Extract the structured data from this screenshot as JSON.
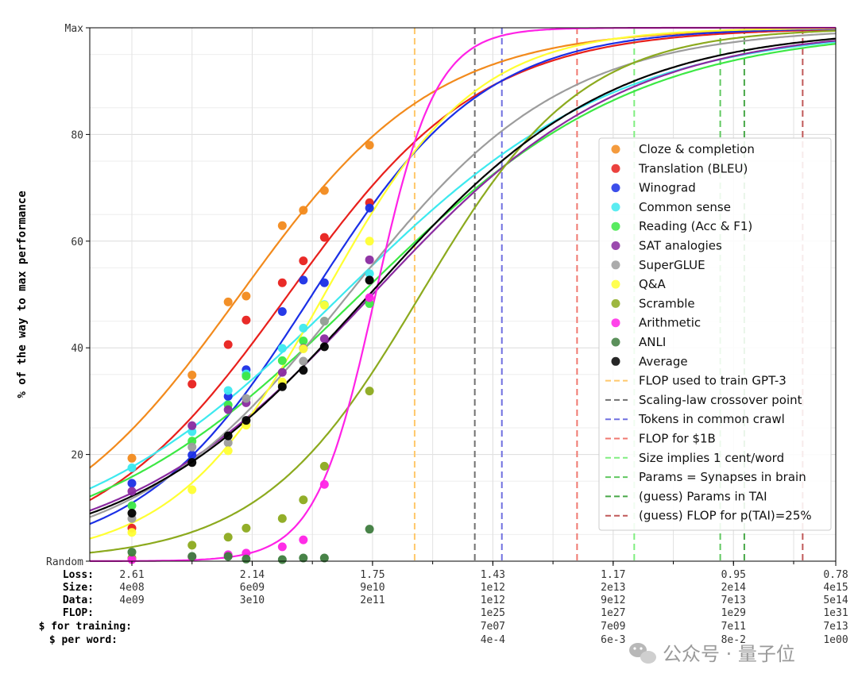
{
  "chart_data": {
    "type": "scatter",
    "ylabel": "% of the way to max performance",
    "x_scale": "log10(FLOP)",
    "xlim": [
      20.3,
      32.7
    ],
    "ylim": [
      0,
      100
    ],
    "y_ticks": [
      {
        "value": 0,
        "label": "Random"
      },
      {
        "value": 20,
        "label": "20"
      },
      {
        "value": 40,
        "label": "40"
      },
      {
        "value": 60,
        "label": "60"
      },
      {
        "value": 80,
        "label": "80"
      },
      {
        "value": 100,
        "label": "Max"
      }
    ],
    "x_minor_ticks": [
      21,
      22,
      23,
      24,
      25,
      26,
      27,
      28,
      29,
      30,
      31,
      32
    ],
    "row_labels": [
      "Loss:",
      "Size:",
      "Data:",
      "FLOP:",
      "$ for training:",
      "$ per word:"
    ],
    "x_table": [
      {
        "x": 21.0,
        "loss": "2.61",
        "size": "4e08",
        "data": "4e09",
        "flop": "",
        "dollars": "",
        "per_word": ""
      },
      {
        "x": 23.0,
        "loss": "2.14",
        "size": "6e09",
        "data": "3e10",
        "flop": "",
        "dollars": "",
        "per_word": ""
      },
      {
        "x": 25.0,
        "loss": "1.75",
        "size": "9e10",
        "data": "2e11",
        "flop": "",
        "dollars": "",
        "per_word": ""
      },
      {
        "x": 27.0,
        "loss": "1.43",
        "size": "1e12",
        "data": "1e12",
        "flop": "1e25",
        "dollars": "7e07",
        "per_word": "4e-4"
      },
      {
        "x": 29.0,
        "loss": "1.17",
        "size": "2e13",
        "data": "9e12",
        "flop": "1e27",
        "dollars": "7e09",
        "per_word": "6e-3"
      },
      {
        "x": 31.0,
        "loss": "0.95",
        "size": "2e14",
        "data": "7e13",
        "flop": "1e29",
        "dollars": "7e11",
        "per_word": "8e-2"
      },
      {
        "x": 32.7,
        "loss": "0.78",
        "size": "4e15",
        "data": "5e14",
        "flop": "1e31",
        "dollars": "7e13",
        "per_word": "1e00"
      }
    ],
    "x_points": [
      21.0,
      22.0,
      22.6,
      22.9,
      23.5,
      23.85,
      24.2,
      24.95
    ],
    "series": [
      {
        "name": "Cloze & completion",
        "color": "#f28a1c",
        "mid": 22.8,
        "k": 0.62,
        "y": [
          19.3,
          34.9,
          48.6,
          49.7,
          62.9,
          65.8,
          69.5,
          78.0
        ]
      },
      {
        "name": "Translation (BLEU)",
        "color": "#e8201c",
        "mid": 23.6,
        "k": 0.62,
        "y": [
          6.2,
          33.2,
          40.6,
          45.2,
          52.2,
          56.3,
          60.7,
          67.2
        ]
      },
      {
        "name": "Winograd",
        "color": "#1a2fe6",
        "mid": 24.0,
        "k": 0.7,
        "y": [
          14.6,
          19.9,
          30.9,
          35.9,
          46.8,
          52.7,
          52.2,
          66.2
        ]
      },
      {
        "name": "Common sense",
        "color": "#3de9ef",
        "mid": 24.5,
        "k": 0.44,
        "y": [
          17.5,
          24.3,
          32.0,
          35.1,
          39.9,
          43.7,
          48.1,
          53.9
        ]
      },
      {
        "name": "Reading (Acc & F1)",
        "color": "#3ce844",
        "mid": 24.8,
        "k": 0.44,
        "y": [
          10.4,
          22.5,
          29.3,
          34.7,
          37.6,
          41.3,
          45.0,
          48.3
        ]
      },
      {
        "name": "SAT analogies",
        "color": "#8a2aa0",
        "mid": 25.0,
        "k": 0.48,
        "y": [
          13.1,
          25.4,
          28.4,
          29.7,
          35.4,
          39.9,
          41.7,
          56.5
        ]
      },
      {
        "name": "SuperGLUE",
        "color": "#9c9c9c",
        "mid": 24.6,
        "k": 0.56,
        "y": [
          8.0,
          21.4,
          22.2,
          30.5,
          33.2,
          37.5,
          45.0,
          52.6
        ]
      },
      {
        "name": "Q&A",
        "color": "#ffff33",
        "mid": 24.2,
        "k": 0.8,
        "y": [
          5.4,
          13.4,
          20.7,
          25.5,
          33.6,
          39.8,
          48.0,
          60.0
        ]
      },
      {
        "name": "Scramble",
        "color": "#8caa1e",
        "mid": 25.8,
        "k": 0.75,
        "y": [
          0.6,
          3.0,
          4.5,
          6.2,
          8.0,
          11.5,
          17.8,
          31.9
        ]
      },
      {
        "name": "Arithmetic",
        "color": "#ff22e6",
        "mid": 25.05,
        "k": 2.0,
        "y": [
          0.3,
          0.8,
          1.2,
          1.5,
          2.7,
          4.0,
          14.4,
          49.4
        ]
      },
      {
        "name": "ANLI",
        "color": "#3e7c3e",
        "y": [
          1.7,
          0.9,
          0.9,
          0.4,
          0.3,
          0.6,
          0.6,
          6.0
        ]
      },
      {
        "name": "Average",
        "color": "#000000",
        "mid": 24.95,
        "k": 0.5,
        "y": [
          9.0,
          18.5,
          23.5,
          26.4,
          32.7,
          35.8,
          40.2,
          52.7
        ]
      }
    ],
    "vlines": [
      {
        "name": "FLOP used to train GPT-3",
        "color": "#ffc86b",
        "x": 25.7
      },
      {
        "name": "Scaling-law crossover point",
        "color": "#707070",
        "x": 26.7
      },
      {
        "name": "Tokens in common crawl",
        "color": "#7070e0",
        "x": 27.15
      },
      {
        "name": "FLOP for $1B",
        "color": "#f07870",
        "x": 28.4
      },
      {
        "name": "Size implies 1 cent/word",
        "color": "#80ee80",
        "x": 29.35
      },
      {
        "name": "Params = Synapses in brain",
        "color": "#60c860",
        "x": 30.78
      },
      {
        "name": "(guess) Params in TAI",
        "color": "#48a848",
        "x": 31.18
      },
      {
        "name": "(guess) FLOP for p(TAI)=25%",
        "color": "#c05858",
        "x": 32.15
      }
    ]
  },
  "watermark": {
    "text": "公众号 · 量子位"
  }
}
